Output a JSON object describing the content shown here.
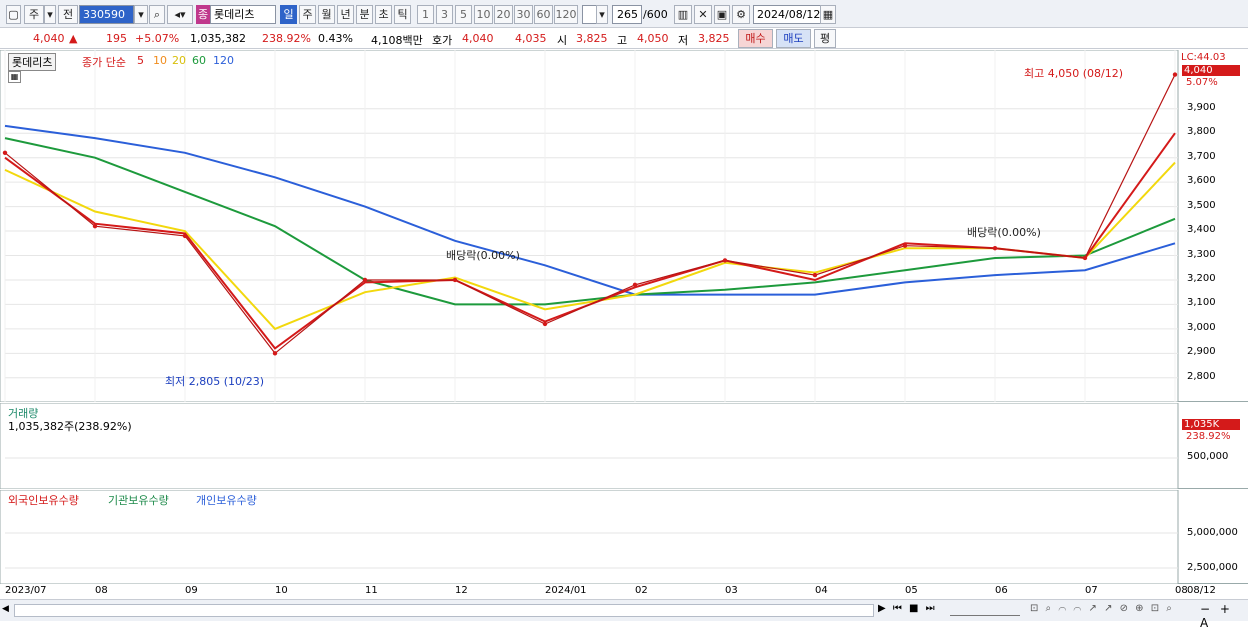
{
  "toolbar": {
    "period_type": "주",
    "compare": "전",
    "code": "330590",
    "stock_name": "롯데리츠",
    "stock_badge": "종",
    "periods": [
      "일",
      "주",
      "월",
      "년",
      "분",
      "초",
      "틱"
    ],
    "active_period": "일",
    "intervals": [
      "1",
      "3",
      "5",
      "10",
      "20",
      "30",
      "60",
      "120"
    ],
    "count": "265",
    "count_total": "/600",
    "date": "2024/08/12"
  },
  "quote": {
    "price": "4,040",
    "change_arrow": "▲",
    "change": "195",
    "change_pct": "+5.07%",
    "volume": "1,035,382",
    "volume_ratio": "238.92%",
    "turnover": "0.43%",
    "amount": "4,108백만",
    "hoga_label": "호가",
    "ask": "4,040",
    "bid": "4,035",
    "open_label": "시",
    "open": "3,825",
    "high_label": "고",
    "high": "4,050",
    "low_label": "저",
    "low": "3,825",
    "buy_label": "매수",
    "sell_label": "매도",
    "eval_label": "평"
  },
  "price_pane": {
    "name": "롯데리츠",
    "legend_title": "종가 단순",
    "ma": [
      "5",
      "10",
      "20",
      "60",
      "120"
    ],
    "ma_colors": [
      "#d41a1a",
      "#f08c1c",
      "#f2d80d",
      "#1d9a3c",
      "#2b5fd9"
    ],
    "lc_label": "LC:44.03",
    "last_price_tag": "4,040",
    "last_pct_tag": "5.07%",
    "high_annot": "최고 4,050 (08/12)",
    "low_annot": "최저 2,805 (10/23)",
    "div_annot_1": "배당락(0.00%)",
    "div_annot_2": "배당락(0.00%)",
    "y_ticks": [
      "3,900",
      "3,800",
      "3,700",
      "3,600",
      "3,500",
      "3,400",
      "3,300",
      "3,200",
      "3,100",
      "3,000",
      "2,900",
      "2,800"
    ]
  },
  "volume_pane": {
    "title": "거래량",
    "value": "1,035,382주(238.92%)",
    "tag": "1,035K",
    "tag_pct": "238.92%",
    "y_tick": "500,000"
  },
  "holdings_pane": {
    "foreign": "외국인보유수량",
    "inst": "기관보유수량",
    "indiv": "개인보유수량",
    "y_ticks": [
      "5,000,000",
      "2,500,000"
    ]
  },
  "x_axis": [
    "2023/07",
    "08",
    "09",
    "10",
    "11",
    "12",
    "2024/01",
    "02",
    "03",
    "04",
    "05",
    "06",
    "07",
    "08",
    "08/12"
  ],
  "chart_data": {
    "type": "line",
    "title": "롯데리츠",
    "x": [
      "2023/07",
      "08",
      "09",
      "10",
      "11",
      "12",
      "2024/01",
      "02",
      "03",
      "04",
      "05",
      "06",
      "07",
      "08"
    ],
    "series": [
      {
        "name": "종가",
        "values": [
          3720,
          3420,
          3380,
          2900,
          3200,
          3200,
          3020,
          3180,
          3280,
          3220,
          3340,
          3330,
          3290,
          4040
        ]
      },
      {
        "name": "5",
        "values": [
          3700,
          3430,
          3390,
          2920,
          3190,
          3200,
          3030,
          3170,
          3280,
          3200,
          3350,
          3330,
          3290,
          3800
        ]
      },
      {
        "name": "20",
        "values": [
          3650,
          3480,
          3400,
          3000,
          3150,
          3210,
          3080,
          3140,
          3270,
          3230,
          3330,
          3330,
          3290,
          3680
        ]
      },
      {
        "name": "60",
        "values": [
          3780,
          3700,
          3560,
          3420,
          3200,
          3100,
          3100,
          3140,
          3160,
          3190,
          3240,
          3290,
          3300,
          3450
        ]
      },
      {
        "name": "120",
        "values": [
          3830,
          3780,
          3720,
          3620,
          3500,
          3360,
          3260,
          3140,
          3140,
          3140,
          3190,
          3220,
          3240,
          3350
        ]
      }
    ],
    "ylim": [
      2750,
      4120
    ],
    "annotations": [
      "최고 4,050 (08/12)",
      "최저 2,805 (10/23)",
      "배당락(0.00%)",
      "배당락(0.00%)"
    ]
  }
}
